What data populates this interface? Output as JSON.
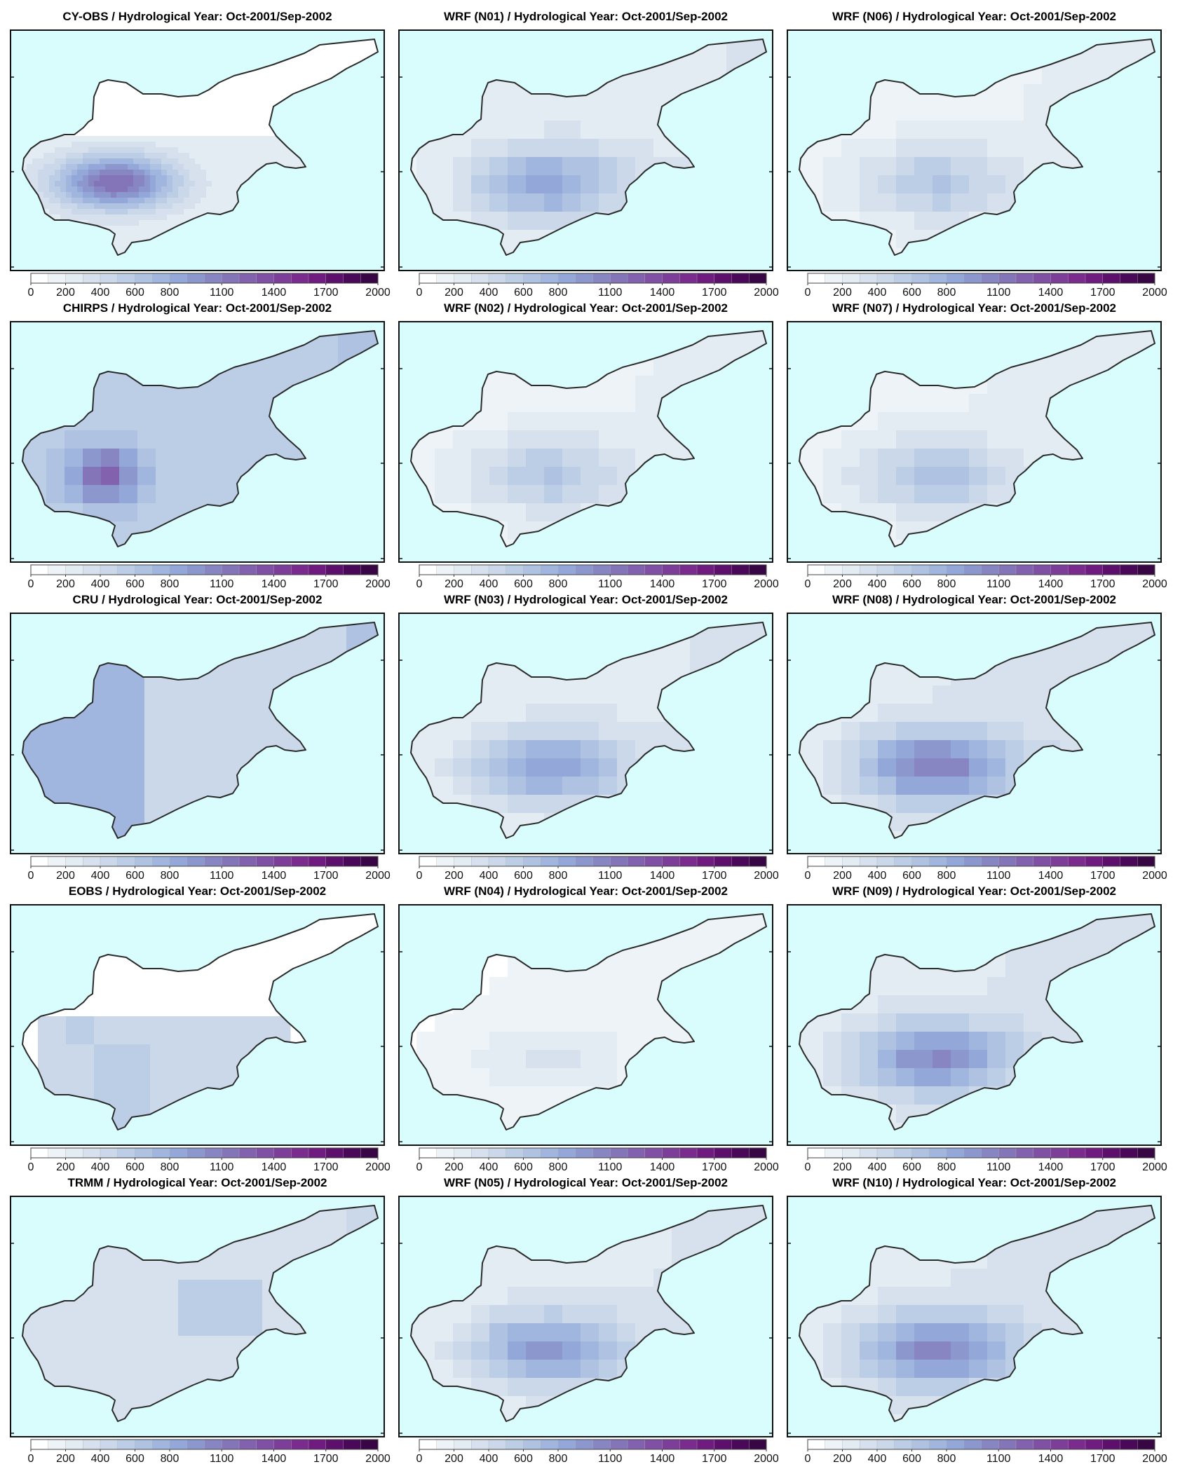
{
  "figure": {
    "colorbar": {
      "ticks": [
        "0",
        "200",
        "400",
        "600",
        "800",
        "1100",
        "1400",
        "1700",
        "2000"
      ],
      "tick_values": [
        0,
        200,
        400,
        600,
        800,
        1100,
        1400,
        1700,
        2000
      ],
      "range": [
        0,
        2000
      ],
      "colors": [
        "#ffffff",
        "#eef3f8",
        "#e3ebf3",
        "#d7e1ee",
        "#cad8ea",
        "#bccde6",
        "#afc2e2",
        "#a1b6de",
        "#93a8d8",
        "#8b97cd",
        "#8886c2",
        "#8474b8",
        "#8262ae",
        "#7f50a4",
        "#7c3e99",
        "#792c8e",
        "#6f1b80",
        "#5d0f6c",
        "#4a0858",
        "#380545"
      ]
    },
    "columns": [
      {
        "panels": [
          {
            "title": "CY-OBS / Hydrological Year: Oct-2001/Sep-2002",
            "field": "obs"
          },
          {
            "title": "CHIRPS / Hydrological Year: Oct-2001/Sep-2002",
            "field": "chirps"
          },
          {
            "title": "CRU / Hydrological Year: Oct-2001/Sep-2002",
            "field": "cru"
          },
          {
            "title": "EOBS / Hydrological Year: Oct-2001/Sep-2002",
            "field": "eobs"
          },
          {
            "title": "TRMM / Hydrological Year: Oct-2001/Sep-2002",
            "field": "trmm"
          }
        ]
      },
      {
        "panels": [
          {
            "title": "WRF (N01) / Hydrological Year: Oct-2001/Sep-2002",
            "field": "wrf",
            "intensity": 1.0
          },
          {
            "title": "WRF (N02) / Hydrological Year: Oct-2001/Sep-2002",
            "field": "wrf",
            "intensity": 0.7
          },
          {
            "title": "WRF (N03) / Hydrological Year: Oct-2001/Sep-2002",
            "field": "wrf",
            "intensity": 1.05
          },
          {
            "title": "WRF (N04) / Hydrological Year: Oct-2001/Sep-2002",
            "field": "wrf",
            "intensity": 0.35
          },
          {
            "title": "WRF (N05) / Hydrological Year: Oct-2001/Sep-2002",
            "field": "wrf",
            "intensity": 1.1
          }
        ]
      },
      {
        "panels": [
          {
            "title": "WRF (N06) / Hydrological Year: Oct-2001/Sep-2002",
            "field": "wrf",
            "intensity": 0.7
          },
          {
            "title": "WRF (N07) / Hydrological Year: Oct-2001/Sep-2002",
            "field": "wrf",
            "intensity": 0.75
          },
          {
            "title": "WRF (N08) / Hydrological Year: Oct-2001/Sep-2002",
            "field": "wrf",
            "intensity": 1.3
          },
          {
            "title": "WRF (N09) / Hydrological Year: Oct-2001/Sep-2002",
            "field": "wrf",
            "intensity": 1.2
          },
          {
            "title": "WRF (N10) / Hydrological Year: Oct-2001/Sep-2002",
            "field": "wrf",
            "intensity": 1.25
          }
        ]
      }
    ],
    "colors": {
      "sea": "#d9fdfd",
      "land_nodata": "#ffffff",
      "coastline": "#2b2b2b",
      "frame": "#111111"
    }
  }
}
